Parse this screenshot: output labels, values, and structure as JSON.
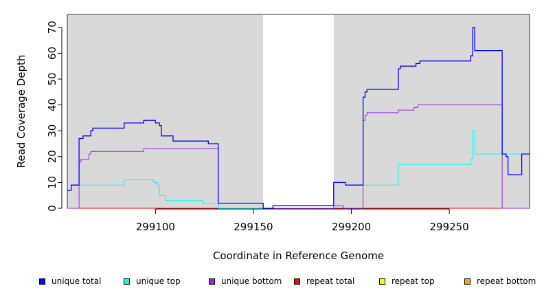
{
  "chart_data": {
    "type": "line",
    "title": "",
    "xlabel": "Coordinate in Reference Genome",
    "ylabel": "Read Coverage Depth",
    "xlim": [
      299055,
      299291
    ],
    "ylim": [
      0,
      75
    ],
    "xticks": [
      299100,
      299150,
      299200,
      299250
    ],
    "yticks": [
      0,
      10,
      20,
      30,
      40,
      50,
      60,
      70
    ],
    "grid": false,
    "shaded_regions": [
      [
        299055,
        299155
      ],
      [
        299191,
        299291
      ]
    ],
    "legend_position": "bottom",
    "series": [
      {
        "name": "unique total",
        "color": "#0000ff",
        "points": [
          [
            299055,
            7
          ],
          [
            299057,
            7
          ],
          [
            299057,
            9
          ],
          [
            299061,
            9
          ],
          [
            299061,
            27
          ],
          [
            299063,
            27
          ],
          [
            299063,
            28
          ],
          [
            299067,
            28
          ],
          [
            299067,
            30
          ],
          [
            299068,
            30
          ],
          [
            299068,
            31
          ],
          [
            299084,
            31
          ],
          [
            299084,
            33
          ],
          [
            299094,
            33
          ],
          [
            299094,
            34
          ],
          [
            299100,
            34
          ],
          [
            299100,
            33
          ],
          [
            299102,
            33
          ],
          [
            299102,
            32
          ],
          [
            299103,
            32
          ],
          [
            299103,
            28
          ],
          [
            299109,
            28
          ],
          [
            299109,
            26
          ],
          [
            299127,
            26
          ],
          [
            299127,
            25
          ],
          [
            299132,
            25
          ],
          [
            299132,
            2
          ],
          [
            299155,
            2
          ],
          [
            299155,
            0
          ],
          [
            299160,
            0
          ],
          [
            299160,
            1
          ],
          [
            299191,
            1
          ],
          [
            299191,
            10
          ],
          [
            299197,
            10
          ],
          [
            299197,
            9
          ],
          [
            299206,
            9
          ],
          [
            299206,
            43
          ],
          [
            299207,
            43
          ],
          [
            299207,
            45
          ],
          [
            299208,
            45
          ],
          [
            299208,
            46
          ],
          [
            299224,
            46
          ],
          [
            299224,
            54
          ],
          [
            299225,
            54
          ],
          [
            299225,
            55
          ],
          [
            299233,
            55
          ],
          [
            299233,
            56
          ],
          [
            299235,
            56
          ],
          [
            299235,
            57
          ],
          [
            299261,
            57
          ],
          [
            299261,
            59
          ],
          [
            299262,
            59
          ],
          [
            299262,
            70
          ],
          [
            299263,
            70
          ],
          [
            299263,
            61
          ],
          [
            299277,
            61
          ],
          [
            299277,
            21
          ],
          [
            299279,
            21
          ],
          [
            299279,
            20
          ],
          [
            299280,
            20
          ],
          [
            299280,
            13
          ],
          [
            299287,
            13
          ],
          [
            299287,
            21
          ],
          [
            299291,
            21
          ]
        ]
      },
      {
        "name": "unique top",
        "color": "#00ffff",
        "points": [
          [
            299055,
            7
          ],
          [
            299057,
            7
          ],
          [
            299057,
            9
          ],
          [
            299084,
            9
          ],
          [
            299084,
            11
          ],
          [
            299099,
            11
          ],
          [
            299099,
            10
          ],
          [
            299101,
            10
          ],
          [
            299101,
            9
          ],
          [
            299102,
            9
          ],
          [
            299102,
            5
          ],
          [
            299105,
            5
          ],
          [
            299105,
            3
          ],
          [
            299124,
            3
          ],
          [
            299124,
            2
          ],
          [
            299132,
            2
          ],
          [
            299132,
            0
          ],
          [
            299155,
            0
          ],
          [
            299155,
            0
          ],
          [
            299160,
            0
          ],
          [
            299160,
            1
          ],
          [
            299191,
            1
          ],
          [
            299191,
            10
          ],
          [
            299197,
            10
          ],
          [
            299197,
            9
          ],
          [
            299224,
            9
          ],
          [
            299224,
            17
          ],
          [
            299261,
            17
          ],
          [
            299261,
            19
          ],
          [
            299262,
            19
          ],
          [
            299262,
            30
          ],
          [
            299263,
            30
          ],
          [
            299263,
            21
          ],
          [
            299277,
            21
          ],
          [
            299277,
            21
          ],
          [
            299291,
            21
          ]
        ]
      },
      {
        "name": "unique bottom",
        "color": "#a020f0",
        "points": [
          [
            299055,
            0
          ],
          [
            299061,
            0
          ],
          [
            299061,
            18
          ],
          [
            299062,
            18
          ],
          [
            299062,
            19
          ],
          [
            299066,
            19
          ],
          [
            299066,
            21
          ],
          [
            299067,
            21
          ],
          [
            299067,
            22
          ],
          [
            299094,
            22
          ],
          [
            299094,
            23
          ],
          [
            299132,
            23
          ],
          [
            299132,
            0
          ],
          [
            299191,
            0
          ],
          [
            299191,
            1
          ],
          [
            299196,
            1
          ],
          [
            299196,
            0
          ],
          [
            299206,
            0
          ],
          [
            299206,
            34
          ],
          [
            299207,
            34
          ],
          [
            299207,
            36
          ],
          [
            299208,
            36
          ],
          [
            299208,
            37
          ],
          [
            299224,
            37
          ],
          [
            299224,
            38
          ],
          [
            299232,
            38
          ],
          [
            299232,
            39
          ],
          [
            299234,
            39
          ],
          [
            299234,
            40
          ],
          [
            299277,
            40
          ],
          [
            299277,
            0
          ],
          [
            299291,
            0
          ]
        ]
      },
      {
        "name": "repeat total",
        "color": "#ff0000",
        "points": [
          [
            299055,
            0
          ],
          [
            299291,
            0
          ]
        ]
      },
      {
        "name": "repeat top",
        "color": "#ffff00",
        "points": [
          [
            299055,
            0
          ],
          [
            299291,
            0
          ]
        ]
      },
      {
        "name": "repeat bottom",
        "color": "#ffa500",
        "points": [
          [
            299055,
            0
          ],
          [
            299291,
            0
          ]
        ]
      }
    ]
  }
}
